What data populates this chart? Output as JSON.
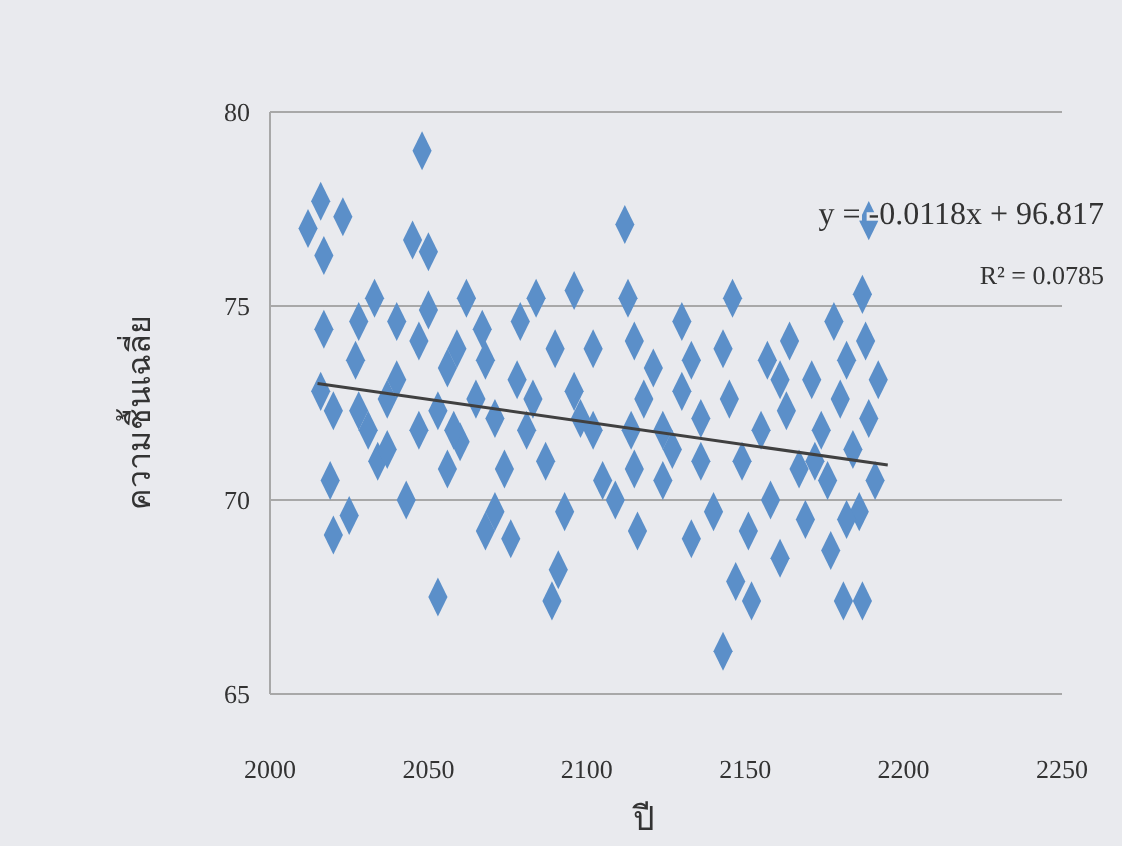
{
  "chart_data": {
    "type": "scatter",
    "xlabel": "ปี",
    "ylabel": "ความชื้นเฉลี่ย",
    "xlim": [
      2000,
      2250
    ],
    "ylim": [
      65,
      80
    ],
    "xticks": [
      2000,
      2050,
      2100,
      2150,
      2200,
      2250
    ],
    "yticks": [
      65,
      70,
      75,
      80
    ],
    "grid": "y",
    "marker": "diamond",
    "annotations": [
      "y = -0.0118x + 96.817",
      "R² = 0.0785"
    ],
    "series": [
      {
        "color": "#5b8fc9",
        "x": [
          2016,
          2012,
          2023,
          2017,
          2017,
          2016,
          2020,
          2019,
          2020,
          2025,
          2028,
          2027,
          2031,
          2034,
          2037,
          2033,
          2048,
          2045,
          2050,
          2040,
          2047,
          2050,
          2053,
          2056,
          2053,
          2043,
          2059,
          2062,
          2065,
          2068,
          2060,
          2071,
          2074,
          2076,
          2078,
          2079,
          2084,
          2083,
          2087,
          2089,
          2091,
          2093,
          2096,
          2098,
          2102,
          2105,
          2109,
          2112,
          2113,
          2115,
          2114,
          2116,
          2118,
          2121,
          2124,
          2127,
          2130,
          2133,
          2136,
          2133,
          2140,
          2143,
          2146,
          2145,
          2147,
          2143,
          2149,
          2151,
          2152,
          2155,
          2157,
          2158,
          2161,
          2163,
          2164,
          2167,
          2169,
          2171,
          2174,
          2176,
          2177,
          2178,
          2180,
          2182,
          2184,
          2186,
          2188,
          2189,
          2187,
          2191,
          2192,
          2187,
          2189,
          2181,
          2068,
          2040,
          2058,
          2096,
          2102,
          2124,
          2136,
          2090,
          2081,
          2028,
          2037,
          2047,
          2056,
          2067,
          2161,
          2172,
          2182,
          2071,
          2115,
          2130
        ],
        "values": [
          77.7,
          77.0,
          77.3,
          76.3,
          74.4,
          72.8,
          72.3,
          70.5,
          69.1,
          69.6,
          74.6,
          73.6,
          71.8,
          71.0,
          72.6,
          75.2,
          79.0,
          76.7,
          76.4,
          73.1,
          74.1,
          74.9,
          72.3,
          70.8,
          67.5,
          70.0,
          73.9,
          75.2,
          72.6,
          73.6,
          71.5,
          72.1,
          70.8,
          69.0,
          73.1,
          74.6,
          75.2,
          72.6,
          71.0,
          67.4,
          68.2,
          69.7,
          75.4,
          72.1,
          73.9,
          70.5,
          70.0,
          77.1,
          75.2,
          74.1,
          71.8,
          69.2,
          72.6,
          73.4,
          70.5,
          71.3,
          74.6,
          73.6,
          72.1,
          69.0,
          69.7,
          73.9,
          75.2,
          72.6,
          67.9,
          66.1,
          71.0,
          69.2,
          67.4,
          71.8,
          73.6,
          70.0,
          68.5,
          72.3,
          74.1,
          70.8,
          69.5,
          73.1,
          71.8,
          70.5,
          68.7,
          74.6,
          72.6,
          73.6,
          71.3,
          69.7,
          74.1,
          72.1,
          67.4,
          70.5,
          73.1,
          75.3,
          77.2,
          67.4,
          69.2,
          74.6,
          71.8,
          72.8,
          71.8,
          71.8,
          71.0,
          73.9,
          71.8,
          72.3,
          71.3,
          71.8,
          73.4,
          74.4,
          73.1,
          71.0,
          69.5,
          69.7,
          70.8,
          72.8
        ]
      },
      {
        "type": "line",
        "marker": "none",
        "color": "#404040",
        "x": [
          2015,
          2195
        ],
        "values": [
          73.0,
          70.9
        ]
      }
    ]
  }
}
